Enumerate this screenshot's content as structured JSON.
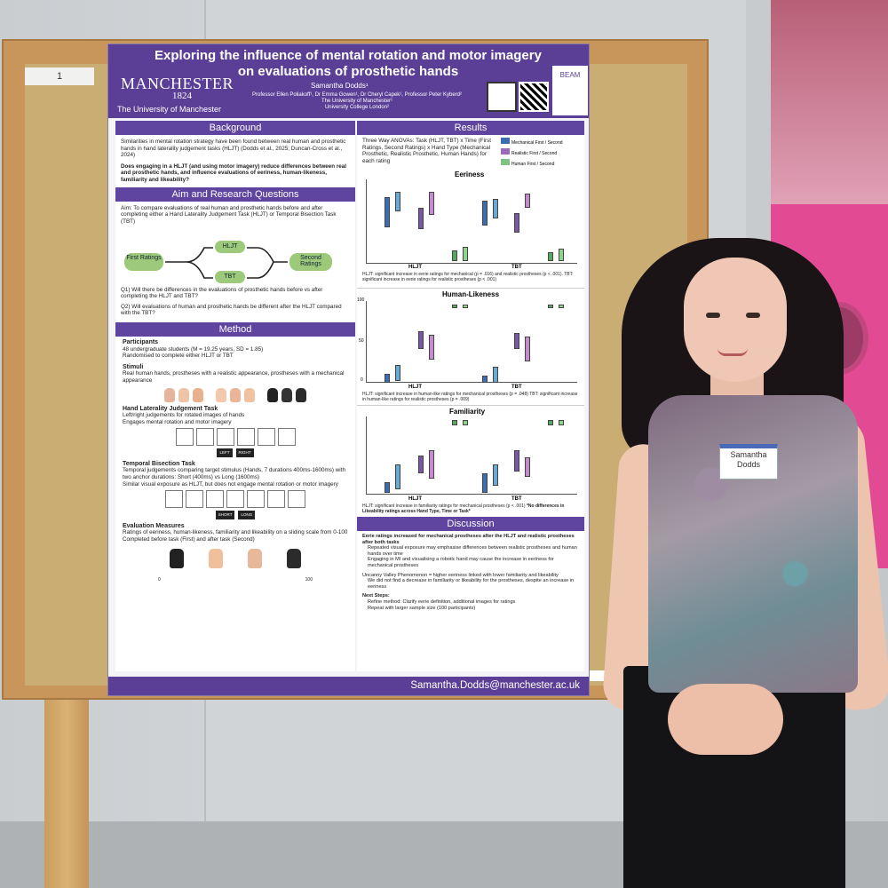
{
  "scene": {
    "board_label": "1",
    "badge_line1": "Samantha",
    "badge_line2": "Dodds"
  },
  "poster": {
    "title_line1": "Exploring the influence of mental rotation and motor imagery",
    "title_line2": "on evaluations of prosthetic hands",
    "logo": "MANCHESTER",
    "logo_year": "1824",
    "university": "The University of Manchester",
    "author": "Samantha Dodds¹",
    "coauthors": "Professor Ellen Poliakoff¹, Dr Emma Gowen¹, Dr Cheryl Capek¹, Professor Peter Kyberd²",
    "affil1": "The University of Manchester¹",
    "affil2": "University College London²",
    "beam": "BEAM",
    "footer_email": "Samantha.Dodds@manchester.ac.uk",
    "background": {
      "heading": "Background",
      "p1": "Similarities in mental rotation strategy have been found between real human and prosthetic hands in hand laterality judgement tasks (HLJT) (Dodds et al., 2025; Duncan-Cross et al., 2024)",
      "p2": "Does engaging in a HLJT (and using motor imagery) reduce differences between real and prosthetic hands, and influence evaluations of eeriness, human-likeness, familiarity and likeability?"
    },
    "aim": {
      "heading": "Aim and Research Questions",
      "text": "Aim: To compare evaluations of real human and prosthetic hands before and after completing either a Hand Laterality Judgement Task (HLJT) or Temporal Bisection Task (TBT)",
      "flow_first": "First Ratings",
      "flow_hljt": "HLJT",
      "flow_tbt": "TBT",
      "flow_second": "Second Ratings",
      "q1": "Q1) Will there be differences in the evaluations of prosthetic hands before vs after completing the HLJT and TBT?",
      "q2": "Q2) Will evaluations of human and prosthetic hands be different after the HLJT compared with the TBT?"
    },
    "method": {
      "heading": "Method",
      "participants_h": "Participants",
      "participants_1": "48 undergraduate students (M = 19.25 years, SD = 1.85)",
      "participants_2": "Randomised to complete either HLJT or TBT",
      "stimuli_h": "Stimuli",
      "stimuli_1": "Real human hands, prostheses with a realistic appearance, prostheses with a mechanical appearance",
      "hljt_h": "Hand Laterality Judgement Task",
      "hljt_1": "Left/right judgements for rotated images of hands",
      "hljt_2": "Engages mental rotation and motor imagery",
      "hljt_left": "LEFT",
      "hljt_right": "RIGHT",
      "tbt_h": "Temporal Bisection Task",
      "tbt_1": "Temporal judgements comparing target stimulus (Hands, 7 durations 400ms-1600ms) with two anchor durations: Short (400ms) vs Long (1600ms)",
      "tbt_2": "Similar visual exposure as HLJT, but does not engage mental rotation or motor imagery",
      "tbt_short": "SHORT",
      "tbt_long": "LONG",
      "eval_h": "Evaluation Measures",
      "eval_1": "Ratings of eeriness, human-likeness, familiarity and likeability on a sliding scale from 0-100",
      "eval_2": "Completed before task (First) and after task (Second)",
      "scale_min": "0",
      "scale_max": "100"
    },
    "results": {
      "heading": "Results",
      "anova": "Three Way ANOVAs: Task (HLJT, TBT) x Time (First Ratings, Second Ratings) x Hand Type (Mechanical Prosthetic, Realistic Prosthetic, Human Hands) for each rating",
      "legend_mech": "Mechanical First / Second",
      "legend_real": "Realistic First / Second",
      "legend_human": "Human First / Second",
      "eeriness_title": "Eeriness",
      "humanlike_title": "Human-Likeness",
      "familiarity_title": "Familiarity",
      "x_hljt": "HLJT",
      "x_tbt": "TBT",
      "y_top": "100",
      "y_mid": "50",
      "y_zero": "0",
      "eeriness_note": "HLJT: significant increase in eerie ratings for mechanical (p = .016) and realistic prostheses (p < .001). TBT: significant increase in eerie ratings for realistic prostheses (p < .001)",
      "humanlike_note": "HLJT: significant increase in human-like ratings for mechanical prostheses (p = .048) TBT: significant increase in human-like ratings for realistic prostheses (p = .009)",
      "familiarity_note": "HLJT: significant increase in familiarity ratings for mechanical prostheses (p < .001)",
      "likeability_note": "*No differences in Likeability ratings across Hand Type, Time or Task*"
    },
    "discussion": {
      "heading": "Discussion",
      "p1": "Eerie ratings increased for mechanical prostheses after the HLJT and realistic prostheses after both tasks",
      "p1a": "Repeated visual exposure may emphasise differences between realistic prostheses and human hands over time",
      "p1b": "Engaging in MI and visualising a robotic hand may cause the increase in eeriness for mechanical prostheses",
      "p2": "Uncanny Valley Phenomenon = higher eeriness linked with lower familiarity and likeability",
      "p2a": "We did not find a decrease in familiarity or likeability for the prostheses, despite an increase in eeriness",
      "next_h": "Next Steps:",
      "next_1": "Refine method: Clarify eerie definition, additional images for ratings",
      "next_2": "Repeat with larger sample size (100 participants)"
    },
    "colors": {
      "purple": "#5b3f96",
      "mechanical": "#3b6db0",
      "realistic": "#9b6bb5",
      "human": "#7fc281"
    }
  }
}
